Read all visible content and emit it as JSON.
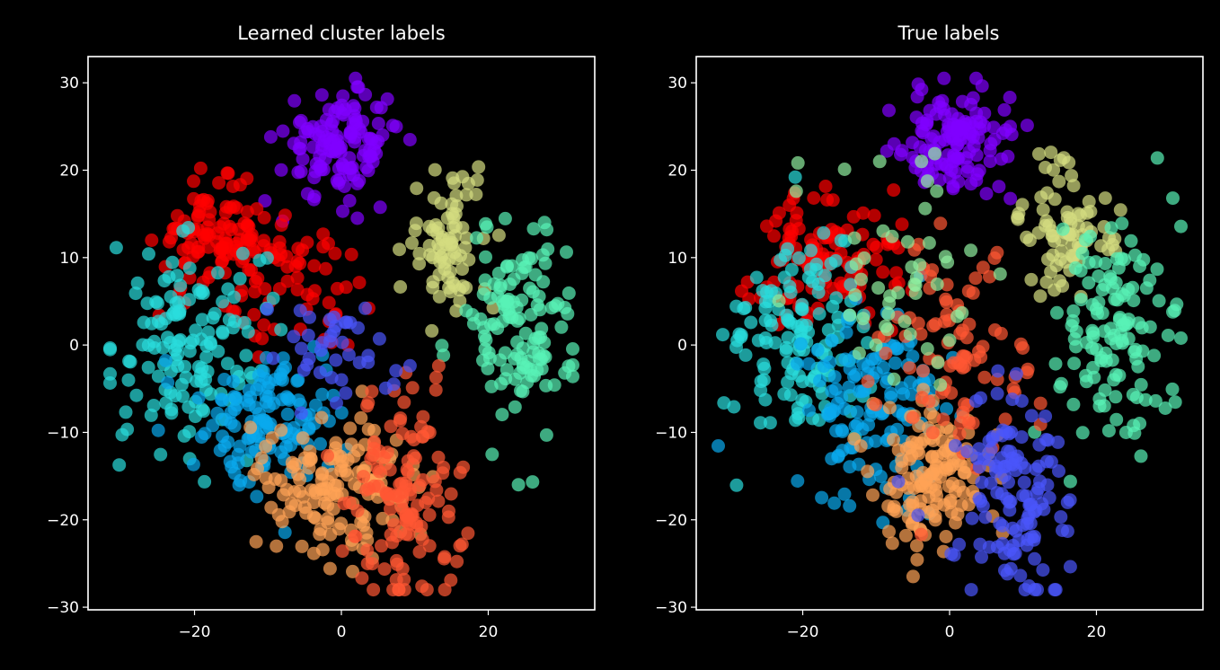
{
  "chart_data": [
    {
      "type": "scatter",
      "title": "Learned cluster labels",
      "xlabel": "",
      "ylabel": "",
      "xlim": [
        -34.5,
        34.5
      ],
      "ylim": [
        -30.3,
        33
      ],
      "xticks": [
        -20,
        0,
        20
      ],
      "yticks": [
        -30,
        -20,
        -10,
        0,
        10,
        20,
        30
      ],
      "xtick_labels": [
        "−20",
        "0",
        "20"
      ],
      "ytick_labels": [
        "−30",
        "−20",
        "−10",
        "0",
        "10",
        "20",
        "30"
      ],
      "grid": false,
      "legend": "none",
      "series": [
        {
          "color": "#8000ff",
          "center": [
            0,
            23
          ],
          "spread": [
            4,
            3.2
          ],
          "count": 130
        },
        {
          "color": "#ff0000",
          "center": [
            -17,
            12
          ],
          "spread": [
            4,
            3
          ],
          "count": 120
        },
        {
          "color": "#ff0000",
          "center": [
            -5,
            6
          ],
          "spread": [
            4,
            4
          ],
          "count": 50
        },
        {
          "color": "#d4dd80",
          "center": [
            15,
            12
          ],
          "spread": [
            3,
            4
          ],
          "count": 80
        },
        {
          "color": "#2adddd",
          "center": [
            -21,
            0
          ],
          "spread": [
            5,
            6
          ],
          "count": 140
        },
        {
          "color": "#58f2b6",
          "center": [
            24,
            2
          ],
          "spread": [
            4,
            6
          ],
          "count": 130
        },
        {
          "color": "#0aaaee",
          "center": [
            -9,
            -8
          ],
          "spread": [
            5,
            4
          ],
          "count": 130
        },
        {
          "color": "#ffa256",
          "center": [
            0,
            -16
          ],
          "spread": [
            5,
            4
          ],
          "count": 150
        },
        {
          "color": "#ff5733",
          "center": [
            9,
            -18
          ],
          "spread": [
            4,
            6
          ],
          "count": 130
        },
        {
          "color": "#4a55fb",
          "center": [
            -1,
            -1
          ],
          "spread": [
            4,
            3
          ],
          "count": 40
        }
      ]
    },
    {
      "type": "scatter",
      "title": "True labels",
      "xlabel": "",
      "ylabel": "",
      "xlim": [
        -34.5,
        34.5
      ],
      "ylim": [
        -30.3,
        33
      ],
      "xticks": [
        -20,
        0,
        20
      ],
      "yticks": [
        -30,
        -20,
        -10,
        0,
        10,
        20,
        30
      ],
      "xtick_labels": [
        "−20",
        "0",
        "20"
      ],
      "ytick_labels": [
        "−30",
        "−20",
        "−10",
        "0",
        "10",
        "20",
        "30"
      ],
      "grid": false,
      "legend": "none",
      "series": [
        {
          "color": "#8000ff",
          "center": [
            1,
            23
          ],
          "spread": [
            4,
            3.2
          ],
          "count": 130
        },
        {
          "color": "#ff0000",
          "center": [
            -16,
            10
          ],
          "spread": [
            5,
            4
          ],
          "count": 120
        },
        {
          "color": "#d4dd80",
          "center": [
            16,
            13
          ],
          "spread": [
            3,
            4
          ],
          "count": 80
        },
        {
          "color": "#2adddd",
          "center": [
            -21,
            0
          ],
          "spread": [
            5,
            6
          ],
          "count": 140
        },
        {
          "color": "#58f2b6",
          "center": [
            23,
            2
          ],
          "spread": [
            4,
            6
          ],
          "count": 130
        },
        {
          "color": "#0aaaee",
          "center": [
            -10,
            -7
          ],
          "spread": [
            5,
            5
          ],
          "count": 130
        },
        {
          "color": "#ffa256",
          "center": [
            -3,
            -15
          ],
          "spread": [
            4,
            4
          ],
          "count": 140
        },
        {
          "color": "#ff5733",
          "center": [
            0,
            -2
          ],
          "spread": [
            5,
            7
          ],
          "count": 90
        },
        {
          "color": "#4a55fb",
          "center": [
            9,
            -18
          ],
          "spread": [
            4,
            6
          ],
          "count": 130
        },
        {
          "color": "#90f0a0",
          "center": [
            -7,
            8
          ],
          "spread": [
            6,
            6
          ],
          "count": 50
        }
      ]
    }
  ]
}
